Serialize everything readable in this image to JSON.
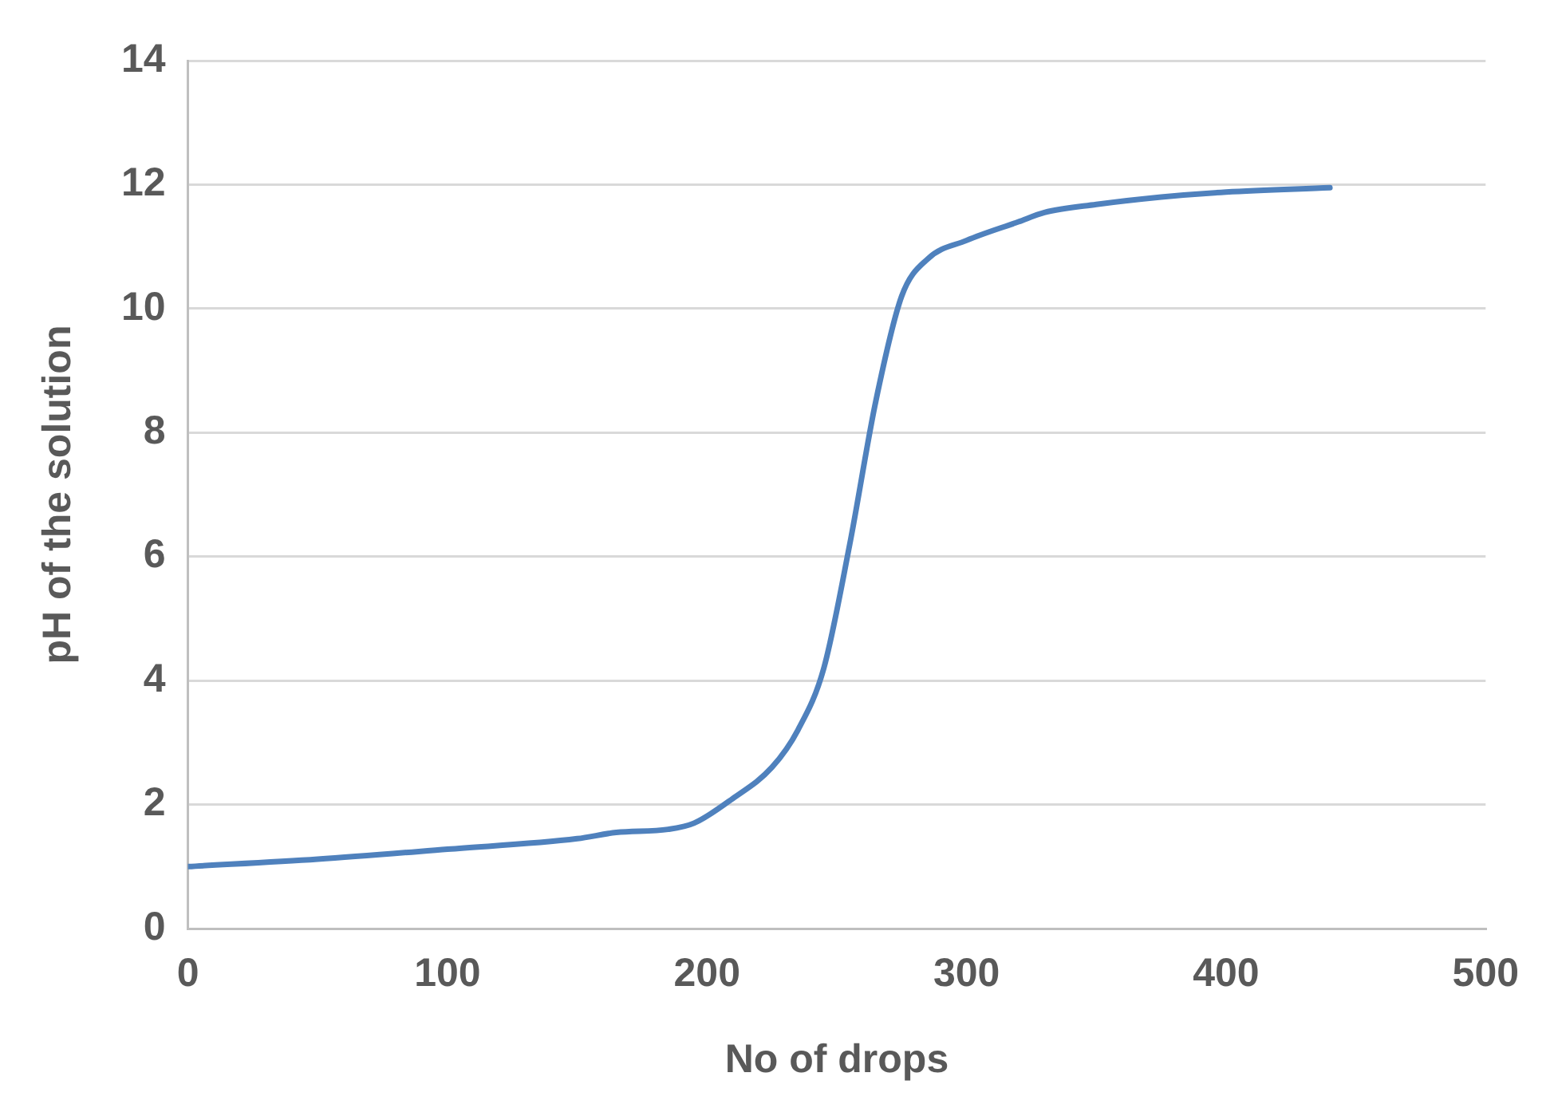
{
  "chart_data": {
    "type": "line",
    "xlabel": "No of drops",
    "ylabel": "pH of the solution",
    "x": [
      0,
      50,
      100,
      150,
      165,
      185,
      195,
      210,
      225,
      235,
      245,
      255,
      265,
      275,
      285,
      300,
      320,
      330,
      350,
      375,
      400,
      440
    ],
    "series": [
      {
        "color": "#4f81bd",
        "values": [
          1.0,
          1.12,
          1.28,
          1.45,
          1.55,
          1.6,
          1.7,
          2.1,
          2.6,
          3.2,
          4.2,
          6.2,
          8.5,
          10.2,
          10.8,
          11.1,
          11.4,
          11.55,
          11.68,
          11.8,
          11.88,
          11.95
        ]
      }
    ],
    "xlim": [
      0,
      500
    ],
    "xticks": [
      0,
      100,
      200,
      300,
      400,
      500
    ],
    "ylim": [
      0,
      14
    ],
    "yticks": [
      0,
      2,
      4,
      6,
      8,
      10,
      12,
      14
    ],
    "grid": "y",
    "legend": false,
    "marker": "none",
    "line_style": "solid"
  }
}
